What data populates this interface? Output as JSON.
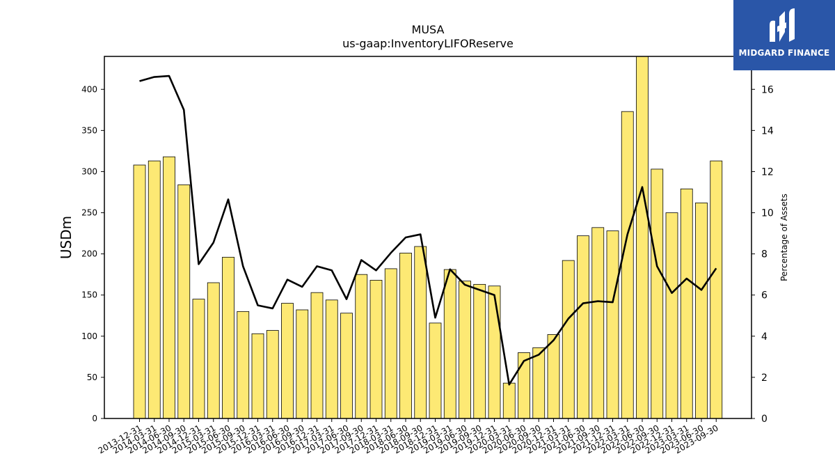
{
  "chart_data": {
    "type": "bar",
    "title": "MUSA",
    "subtitle": "us-gaap:InventoryLIFOReserve",
    "ylabel": "USDm",
    "y2label": "Percentage of Assets",
    "ylim": [
      0,
      440
    ],
    "y2lim": [
      0,
      17.6
    ],
    "yticks": [
      0,
      50,
      100,
      150,
      200,
      250,
      300,
      350,
      400
    ],
    "y2ticks": [
      0,
      2,
      4,
      6,
      8,
      10,
      12,
      14,
      16
    ],
    "categories": [
      "2013-12-31",
      "2014-03-31",
      "2014-06-30",
      "2014-09-30",
      "2014-12-31",
      "2015-03-31",
      "2015-06-30",
      "2015-09-30",
      "2015-12-31",
      "2016-03-31",
      "2016-06-30",
      "2016-09-30",
      "2016-12-31",
      "2017-03-31",
      "2017-06-30",
      "2017-09-30",
      "2017-12-31",
      "2018-03-31",
      "2018-06-30",
      "2018-09-30",
      "2018-12-31",
      "2019-03-31",
      "2019-06-30",
      "2019-09-30",
      "2019-12-31",
      "2020-03-31",
      "2020-06-30",
      "2020-09-30",
      "2020-12-31",
      "2021-03-31",
      "2021-06-30",
      "2021-09-30",
      "2021-12-31",
      "2022-03-31",
      "2022-06-30",
      "2022-09-30",
      "2022-12-31",
      "2023-03-31",
      "2023-06-30",
      "2023-09-30"
    ],
    "series": [
      {
        "name": "",
        "type": "bar",
        "axis": "left",
        "values": [
          308,
          313,
          318,
          284,
          145,
          165,
          196,
          130,
          103,
          107,
          140,
          132,
          153,
          144,
          128,
          175,
          168,
          182,
          201,
          209,
          116,
          181,
          167,
          163,
          161,
          43,
          80,
          86,
          102,
          192,
          222,
          232,
          228,
          373,
          440,
          303,
          250,
          279,
          262,
          313
        ]
      },
      {
        "name": "",
        "type": "line",
        "axis": "right",
        "values": [
          16.4,
          16.6,
          16.65,
          15.0,
          7.5,
          8.55,
          10.65,
          7.4,
          5.5,
          5.35,
          6.75,
          6.4,
          7.4,
          7.2,
          5.8,
          7.7,
          7.2,
          8.05,
          8.8,
          8.95,
          4.9,
          7.25,
          6.5,
          6.25,
          6.0,
          1.65,
          2.8,
          3.1,
          3.8,
          4.85,
          5.6,
          5.7,
          5.65,
          8.95,
          11.25,
          7.4,
          6.1,
          6.8,
          6.25,
          7.3
        ]
      }
    ],
    "colors": {
      "bar_fill": "#fde974",
      "bar_edge": "#000000",
      "line": "#000000"
    },
    "grid": false
  },
  "logo": {
    "text": "MIDGARD FINANCE",
    "background": "#2a56a8"
  }
}
